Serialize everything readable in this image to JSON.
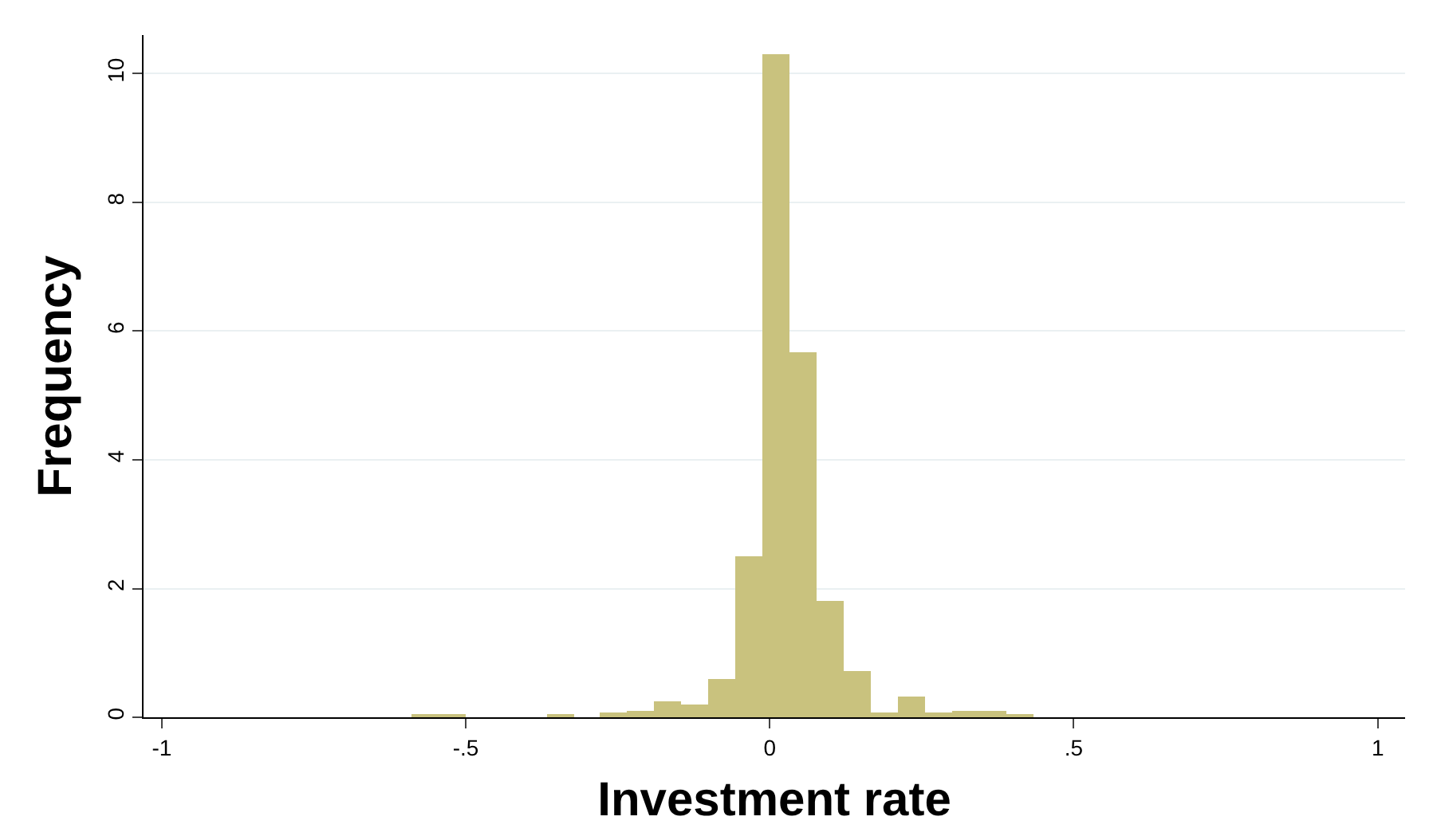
{
  "chart_data": {
    "type": "histogram",
    "xlabel": "Investment rate",
    "ylabel": "Frequency",
    "color": "#c9c27e",
    "bins": [
      -0.59,
      -0.5455,
      -0.501,
      -0.4565,
      -0.412,
      -0.3675,
      -0.323,
      -0.2785,
      -0.234,
      -0.1895,
      -0.145,
      -0.1005,
      -0.056,
      -0.0115,
      0.033,
      0.0775,
      0.122,
      0.1665,
      0.211,
      0.2555,
      0.3,
      0.3445,
      0.389,
      0.4335
    ],
    "values": [
      0.05,
      0.05,
      0,
      0,
      0,
      0.05,
      0,
      0.08,
      0.11,
      0.24,
      0.21,
      0.6,
      2.49,
      10.3,
      5.68,
      1.82,
      0.72,
      0.08,
      0.31,
      0.08,
      0.1,
      0.1,
      0.04
    ],
    "xlim": [
      -1.03,
      1.045
    ],
    "ylim": [
      0,
      10.6
    ],
    "xticks": [
      -1,
      {
        "value": -0.5,
        "label": "-.5"
      },
      0,
      {
        "value": 0.5,
        "label": ".5"
      },
      1
    ],
    "yticks": [
      0,
      2,
      4,
      6,
      8,
      10
    ],
    "grid": "y"
  }
}
